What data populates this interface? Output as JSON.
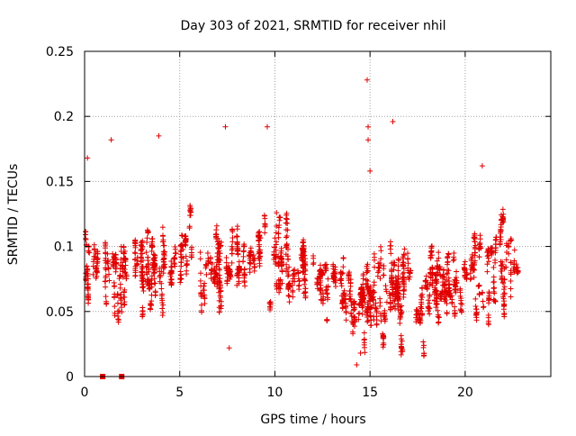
{
  "chart_data": {
    "type": "scatter",
    "title": "Day 303 of 2021, SRMTID for receiver nhil",
    "xlabel": "GPS time / hours",
    "ylabel": "SRMTID / TECUs",
    "xlim": [
      0,
      24.5
    ],
    "ylim": [
      0,
      0.25
    ],
    "x_ticks": [
      0,
      5,
      10,
      15,
      20
    ],
    "y_ticks": [
      0,
      0.05,
      0.1,
      0.15,
      0.2,
      0.25
    ],
    "x_tick_labels": [
      "0",
      "5",
      "10",
      "15",
      "20"
    ],
    "y_tick_labels": [
      "0",
      "0.05",
      "0.1",
      "0.15",
      "0.2",
      "0.25"
    ],
    "grid": true,
    "marker": "plus",
    "color": "#e00000",
    "zero_markers": [
      {
        "x": 0.95,
        "y": 0
      },
      {
        "x": 1.95,
        "y": 0
      }
    ],
    "series": [
      {
        "name": "SRMTID",
        "notes": "dense scatter, approx. 2500 points; mean trend by hour",
        "trend": [
          {
            "x": 0.0,
            "y": 0.08,
            "spread": 0.03
          },
          {
            "x": 1.0,
            "y": 0.088,
            "spread": 0.032
          },
          {
            "x": 2.0,
            "y": 0.082,
            "spread": 0.03
          },
          {
            "x": 3.0,
            "y": 0.085,
            "spread": 0.03
          },
          {
            "x": 4.0,
            "y": 0.09,
            "spread": 0.03
          },
          {
            "x": 5.0,
            "y": 0.092,
            "spread": 0.03
          },
          {
            "x": 6.0,
            "y": 0.09,
            "spread": 0.03
          },
          {
            "x": 7.0,
            "y": 0.087,
            "spread": 0.029
          },
          {
            "x": 8.0,
            "y": 0.085,
            "spread": 0.028
          },
          {
            "x": 9.0,
            "y": 0.087,
            "spread": 0.028
          },
          {
            "x": 10.0,
            "y": 0.085,
            "spread": 0.027
          },
          {
            "x": 11.0,
            "y": 0.082,
            "spread": 0.026
          },
          {
            "x": 12.0,
            "y": 0.078,
            "spread": 0.024
          },
          {
            "x": 13.0,
            "y": 0.068,
            "spread": 0.022
          },
          {
            "x": 14.0,
            "y": 0.055,
            "spread": 0.02
          },
          {
            "x": 15.0,
            "y": 0.065,
            "spread": 0.022
          },
          {
            "x": 16.0,
            "y": 0.07,
            "spread": 0.024
          },
          {
            "x": 17.0,
            "y": 0.072,
            "spread": 0.024
          },
          {
            "x": 18.0,
            "y": 0.07,
            "spread": 0.024
          },
          {
            "x": 19.0,
            "y": 0.065,
            "spread": 0.023
          },
          {
            "x": 20.0,
            "y": 0.07,
            "spread": 0.025
          },
          {
            "x": 21.0,
            "y": 0.085,
            "spread": 0.028
          },
          {
            "x": 22.0,
            "y": 0.09,
            "spread": 0.03
          },
          {
            "x": 23.0,
            "y": 0.085,
            "spread": 0.028
          }
        ],
        "x_range": [
          0.0,
          22.9
        ],
        "highlights": [
          {
            "x": 14.85,
            "y": 0.228
          },
          {
            "x": 16.2,
            "y": 0.196
          },
          {
            "x": 9.6,
            "y": 0.192
          },
          {
            "x": 7.4,
            "y": 0.192
          },
          {
            "x": 14.9,
            "y": 0.192
          },
          {
            "x": 3.9,
            "y": 0.185
          },
          {
            "x": 1.4,
            "y": 0.182
          },
          {
            "x": 14.9,
            "y": 0.182
          },
          {
            "x": 15.0,
            "y": 0.158
          },
          {
            "x": 20.9,
            "y": 0.162
          },
          {
            "x": 0.15,
            "y": 0.168
          },
          {
            "x": 14.3,
            "y": 0.009
          },
          {
            "x": 14.5,
            "y": 0.018
          },
          {
            "x": 7.6,
            "y": 0.022
          }
        ]
      }
    ]
  }
}
